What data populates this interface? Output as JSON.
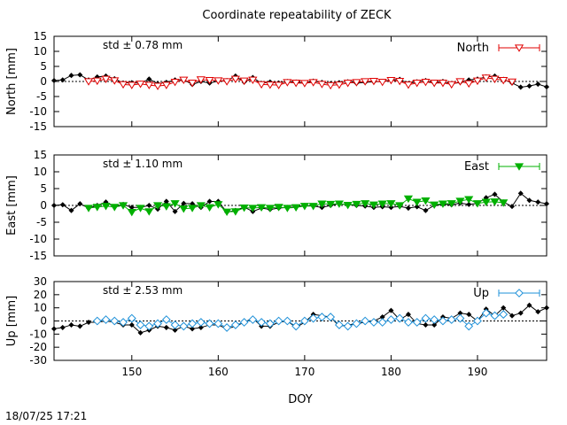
{
  "title": "Coordinate repeatability of ZECK",
  "timestamp": "18/07/25 17:21",
  "chart_data": [
    {
      "type": "line",
      "name": "North",
      "ylabel": "North [mm]",
      "xlabel": "",
      "stat_label": "std ± 0.78 mm",
      "stat_color": "#e00000",
      "legend": "North",
      "legend_placement": "top-right",
      "marker": "triangle-down-open",
      "color": "#e00000",
      "xlim": [
        141,
        198
      ],
      "ylim": [
        -15,
        15
      ],
      "yticks": [
        -15,
        -10,
        -5,
        0,
        5,
        10,
        15
      ],
      "xticks": [
        150,
        160,
        170,
        180,
        190
      ],
      "series": [
        {
          "name": "raw",
          "color": "#000000",
          "x": [
            141,
            142,
            143,
            144,
            145,
            146,
            147,
            148,
            149,
            150,
            151,
            152,
            153,
            154,
            155,
            156,
            157,
            158,
            159,
            160,
            161,
            162,
            163,
            164,
            165,
            166,
            167,
            168,
            169,
            170,
            171,
            172,
            173,
            174,
            175,
            176,
            177,
            178,
            179,
            180,
            181,
            182,
            183,
            184,
            185,
            186,
            187,
            188,
            189,
            190,
            191,
            192,
            193,
            194,
            195,
            196,
            197,
            198
          ],
          "y": [
            0.3,
            0.5,
            2.0,
            2.2,
            0.5,
            1.5,
            1.8,
            0.9,
            -0.5,
            -0.4,
            -0.6,
            0.8,
            -0.7,
            -0.3,
            0.5,
            0.6,
            -1.0,
            0.0,
            -0.5,
            0.1,
            0.3,
            1.8,
            -0.2,
            1.3,
            -0.6,
            -0.2,
            -0.5,
            0.0,
            -0.2,
            -0.5,
            0.1,
            -0.3,
            -0.7,
            -0.4,
            -0.1,
            -0.6,
            -0.3,
            -0.1,
            0.0,
            0.5,
            0.7,
            -0.7,
            -0.1,
            0.3,
            -0.6,
            0.0,
            -0.8,
            -0.3,
            0.5,
            0.8,
            1.5,
            1.8,
            0.7,
            -0.5,
            -1.9,
            -1.5,
            -0.9,
            -1.8
          ]
        },
        {
          "name": "filtered",
          "color": "#e00000",
          "x": [
            145,
            146,
            147,
            148,
            149,
            150,
            151,
            152,
            153,
            154,
            155,
            156,
            157,
            158,
            159,
            160,
            161,
            162,
            163,
            164,
            165,
            166,
            167,
            168,
            169,
            170,
            171,
            172,
            173,
            174,
            175,
            176,
            177,
            178,
            179,
            180,
            181,
            182,
            183,
            184,
            185,
            186,
            187,
            188,
            189,
            190,
            191,
            192,
            193,
            194
          ],
          "y": [
            0.0,
            0.2,
            0.8,
            0.3,
            -1.0,
            -1.2,
            -0.8,
            -1.2,
            -1.5,
            -1.2,
            -0.2,
            0.5,
            -0.5,
            0.6,
            0.4,
            0.3,
            0.0,
            0.8,
            0.2,
            0.5,
            -1.0,
            -1.1,
            -1.2,
            -0.3,
            -0.5,
            -0.6,
            -0.3,
            -0.9,
            -1.3,
            -1.1,
            -0.5,
            -0.3,
            0.0,
            0.1,
            -0.2,
            0.4,
            0.1,
            -1.1,
            -0.5,
            -0.2,
            -0.5,
            -0.5,
            -1.0,
            0.0,
            -0.7,
            0.2,
            1.2,
            0.8,
            0.4,
            -0.1
          ]
        }
      ]
    },
    {
      "type": "line",
      "name": "East",
      "ylabel": "East [mm]",
      "xlabel": "",
      "stat_label": "std ± 1.10 mm",
      "stat_color": "#00b000",
      "legend": "East",
      "legend_placement": "top-right",
      "marker": "triangle-down-filled",
      "color": "#00b000",
      "xlim": [
        141,
        198
      ],
      "ylim": [
        -15,
        15
      ],
      "yticks": [
        -15,
        -10,
        -5,
        0,
        5,
        10,
        15
      ],
      "xticks": [
        150,
        160,
        170,
        180,
        190
      ],
      "series": [
        {
          "name": "raw",
          "color": "#000000",
          "x": [
            141,
            142,
            143,
            144,
            145,
            146,
            147,
            148,
            149,
            150,
            151,
            152,
            153,
            154,
            155,
            156,
            157,
            158,
            159,
            160,
            161,
            162,
            163,
            164,
            165,
            166,
            167,
            168,
            169,
            170,
            171,
            172,
            173,
            174,
            175,
            176,
            177,
            178,
            179,
            180,
            181,
            182,
            183,
            184,
            185,
            186,
            187,
            188,
            189,
            190,
            191,
            192,
            193,
            194,
            195,
            196,
            197,
            198
          ],
          "y": [
            0.0,
            0.2,
            -1.5,
            0.5,
            -0.8,
            0.0,
            1.0,
            -0.5,
            0.3,
            -0.6,
            -0.6,
            0.0,
            -1.1,
            1.2,
            -1.8,
            0.6,
            0.5,
            -0.6,
            1.2,
            1.2,
            -2.0,
            -1.5,
            -0.5,
            -1.8,
            -0.8,
            -1.2,
            -0.8,
            -0.6,
            -0.5,
            0.0,
            -0.2,
            -0.6,
            0.0,
            0.5,
            0.2,
            0.0,
            -0.2,
            -0.6,
            -0.4,
            -0.6,
            -0.3,
            -0.8,
            -0.4,
            -1.5,
            0.0,
            0.3,
            0.2,
            0.7,
            0.3,
            0.6,
            2.3,
            3.3,
            1.0,
            -0.3,
            3.6,
            1.5,
            1.0,
            0.5
          ]
        },
        {
          "name": "filtered",
          "color": "#00b000",
          "x": [
            145,
            146,
            147,
            148,
            149,
            150,
            151,
            152,
            153,
            154,
            155,
            156,
            157,
            158,
            159,
            160,
            161,
            162,
            163,
            164,
            165,
            166,
            167,
            168,
            169,
            170,
            171,
            172,
            173,
            174,
            175,
            176,
            177,
            178,
            179,
            180,
            181,
            182,
            183,
            184,
            185,
            186,
            187,
            188,
            189,
            190,
            191,
            192,
            193
          ],
          "y": [
            -0.8,
            -0.5,
            -0.2,
            -0.5,
            0.0,
            -2.0,
            -0.8,
            -1.8,
            0.0,
            -0.3,
            0.6,
            -1.0,
            -0.8,
            0.0,
            -0.6,
            0.3,
            -1.9,
            -1.8,
            -0.7,
            -0.8,
            -0.6,
            -0.8,
            -0.5,
            -0.8,
            -0.6,
            -0.2,
            -0.2,
            0.5,
            0.4,
            0.5,
            0.1,
            0.4,
            0.6,
            0.2,
            0.5,
            0.6,
            0.0,
            2.0,
            1.0,
            1.4,
            0.2,
            0.5,
            0.6,
            1.3,
            1.8,
            0.6,
            1.0,
            1.1,
            0.8
          ]
        }
      ]
    },
    {
      "type": "line",
      "name": "Up",
      "ylabel": "Up [mm]",
      "xlabel": "DOY",
      "stat_label": "std ± 2.53 mm",
      "stat_color": "#1e90d8",
      "legend": "Up",
      "legend_placement": "top-right",
      "marker": "diamond-open",
      "color": "#1e90d8",
      "xlim": [
        141,
        198
      ],
      "ylim": [
        -30,
        30
      ],
      "yticks": [
        -30,
        -20,
        -10,
        0,
        10,
        20,
        30
      ],
      "xticks": [
        150,
        160,
        170,
        180,
        190
      ],
      "series": [
        {
          "name": "raw",
          "color": "#000000",
          "x": [
            141,
            142,
            143,
            144,
            145,
            146,
            147,
            148,
            149,
            150,
            151,
            152,
            153,
            154,
            155,
            156,
            157,
            158,
            159,
            160,
            161,
            162,
            163,
            164,
            165,
            166,
            167,
            168,
            169,
            170,
            171,
            172,
            173,
            174,
            175,
            176,
            177,
            178,
            179,
            180,
            181,
            182,
            183,
            184,
            185,
            186,
            187,
            188,
            189,
            190,
            191,
            192,
            193,
            194,
            195,
            196,
            197,
            198
          ],
          "y": [
            -6,
            -5,
            -3,
            -4,
            -1,
            -1,
            0,
            -1,
            -3,
            -3,
            -9,
            -7,
            -4,
            -5,
            -7,
            -4,
            -6,
            -5,
            -3,
            -3,
            -6,
            -4,
            -1,
            2,
            -4,
            -4,
            -1,
            0,
            -5,
            -1,
            5,
            4,
            3,
            -4,
            -3,
            -2,
            -1,
            0,
            3,
            8,
            1,
            5,
            -2,
            -3,
            -3,
            3,
            2,
            6,
            5,
            0,
            9,
            4,
            10,
            4,
            6,
            12,
            7,
            10
          ]
        },
        {
          "name": "filtered",
          "color": "#1e90d8",
          "x": [
            146,
            147,
            148,
            149,
            150,
            151,
            152,
            153,
            154,
            155,
            156,
            157,
            158,
            159,
            160,
            161,
            162,
            163,
            164,
            165,
            166,
            167,
            168,
            169,
            170,
            171,
            172,
            173,
            174,
            175,
            176,
            177,
            178,
            179,
            180,
            181,
            182,
            183,
            184,
            185,
            186,
            187,
            188,
            189,
            190,
            191,
            192,
            193
          ],
          "y": [
            0,
            1,
            0,
            -1,
            2,
            -3,
            -4,
            -2,
            1,
            -3,
            -4,
            -2,
            -1,
            -2,
            -2,
            -5,
            -3,
            -1,
            1,
            -1,
            -2,
            0,
            0,
            -4,
            0,
            2,
            3,
            3,
            -3,
            -4,
            -2,
            0,
            -1,
            -1,
            1,
            2,
            -1,
            -1,
            2,
            1,
            0,
            1,
            2,
            -4,
            0,
            6,
            4,
            5
          ]
        }
      ]
    }
  ]
}
